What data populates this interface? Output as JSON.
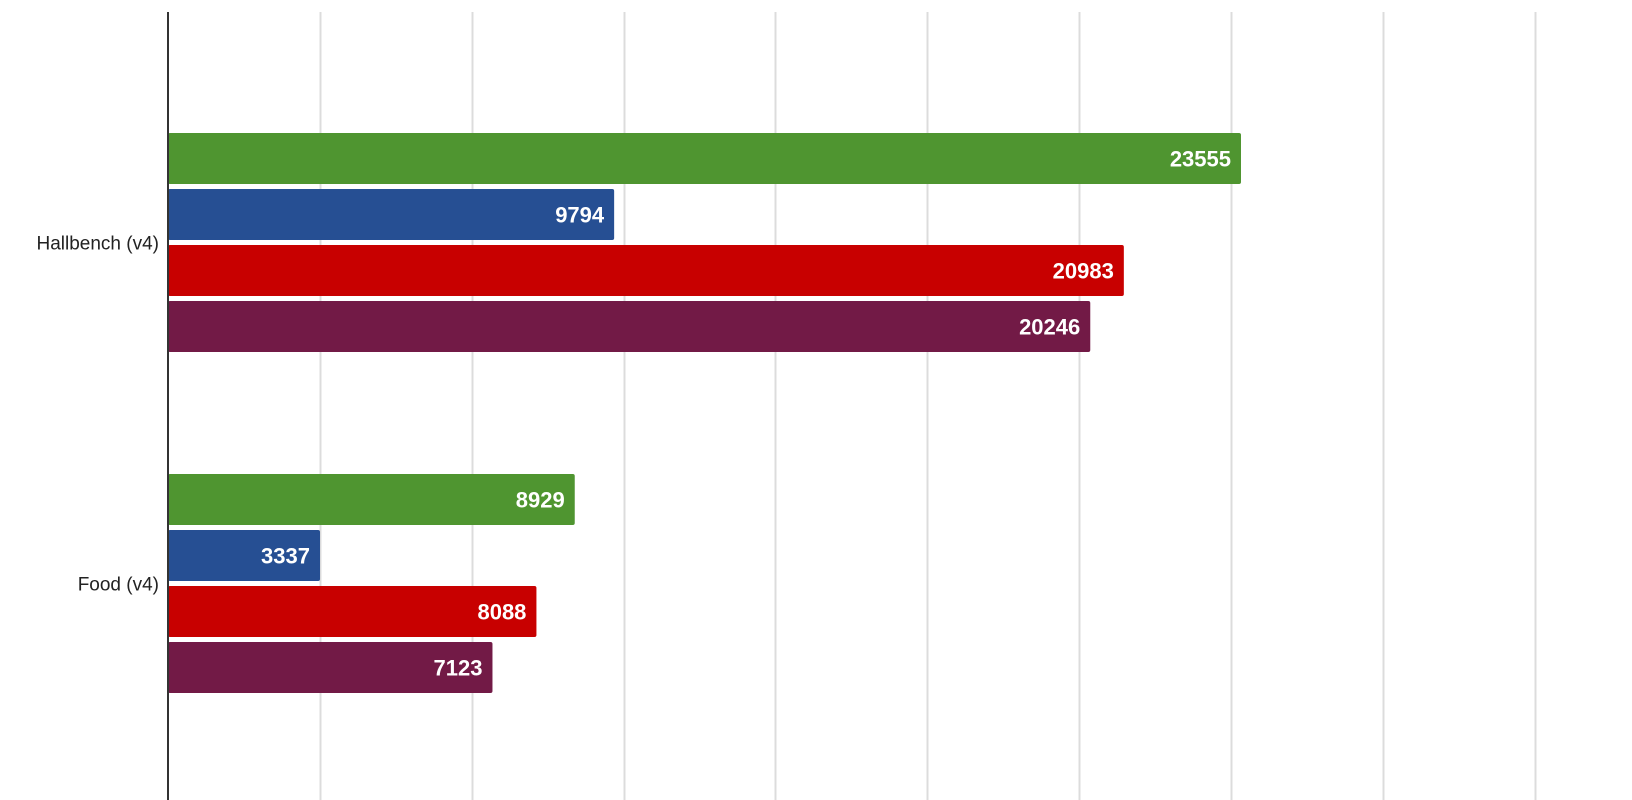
{
  "chart_data": {
    "type": "bar",
    "orientation": "horizontal",
    "categories": [
      "Hallbench (v4)",
      "Food (v4)"
    ],
    "series": [
      {
        "color": "#4f9530",
        "values": [
          23555,
          8929
        ]
      },
      {
        "color": "#264f93",
        "values": [
          9794,
          3337
        ]
      },
      {
        "color": "#c80000",
        "values": [
          20983,
          8088
        ]
      },
      {
        "color": "#721a46",
        "values": [
          20246,
          7123
        ]
      }
    ],
    "xlim": [
      0,
      30000
    ],
    "x_gridline_step": 3333.33,
    "grid": true,
    "legend": "none",
    "data_labels": true
  }
}
